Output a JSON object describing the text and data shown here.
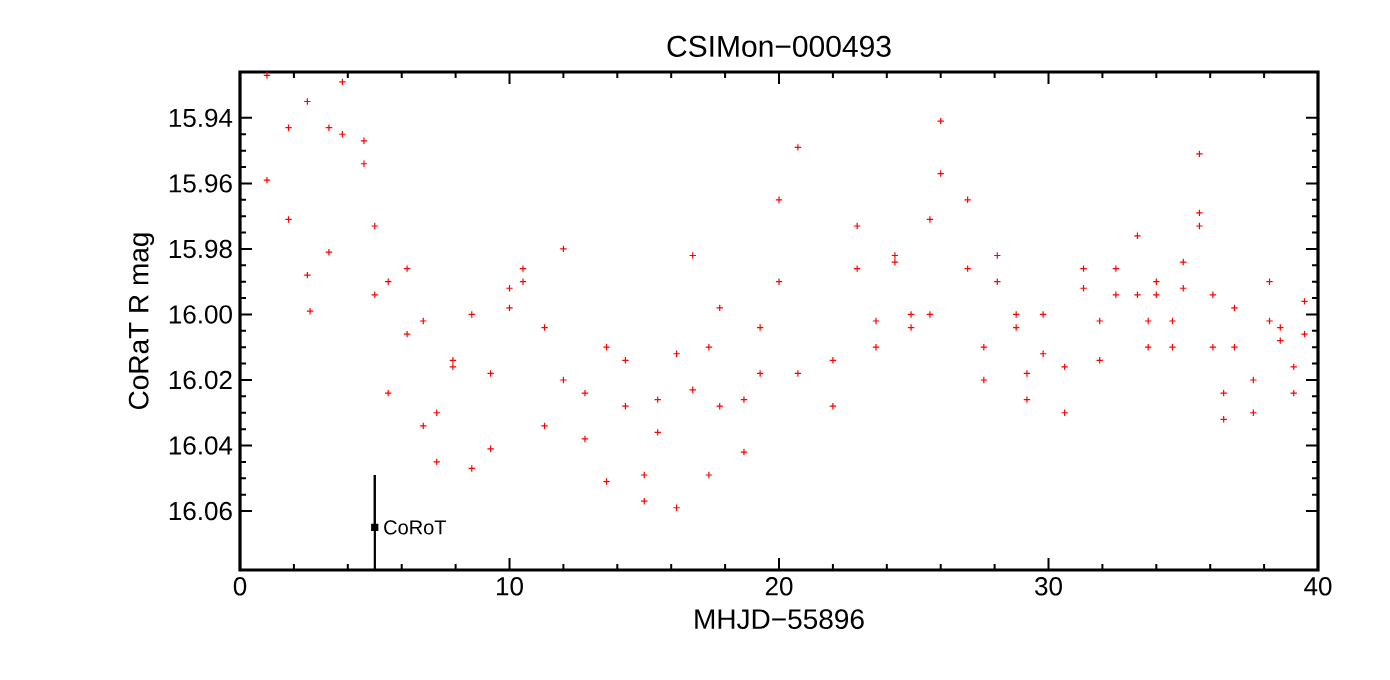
{
  "chart_data": {
    "type": "scatter",
    "title": "CSIMon−000493",
    "xlabel": "MHJD−55896",
    "ylabel": "CoRaT R mag",
    "xlim": [
      0,
      40
    ],
    "xticks": [
      0,
      10,
      20,
      30,
      40
    ],
    "ylim": [
      16.078,
      15.926
    ],
    "yticks": [
      {
        "value": 15.94,
        "label": "15.94"
      },
      {
        "value": 15.96,
        "label": "15.96"
      },
      {
        "value": 15.98,
        "label": "15.98"
      },
      {
        "value": 16.0,
        "label": "16.00"
      },
      {
        "value": 16.02,
        "label": "16.02"
      },
      {
        "value": 16.04,
        "label": "16.04"
      },
      {
        "value": 16.06,
        "label": "16.06"
      }
    ],
    "grid": false,
    "series": [
      {
        "color": "#ff0000",
        "marker": "cross",
        "x": [
          1.0,
          1.0,
          1.8,
          1.8,
          2.5,
          2.5,
          2.6,
          3.3,
          3.3,
          3.8,
          3.8,
          4.6,
          4.6,
          5.0,
          5.0,
          5.5,
          5.5,
          6.2,
          6.2,
          6.8,
          6.8,
          7.3,
          7.3,
          7.9,
          7.9,
          8.6,
          8.6,
          9.3,
          9.3,
          10.0,
          10.0,
          10.5,
          10.5,
          11.3,
          11.3,
          12.0,
          12.0,
          12.8,
          12.8,
          13.6,
          13.6,
          14.3,
          14.3,
          15.0,
          15.0,
          15.5,
          15.5,
          16.2,
          16.2,
          16.8,
          16.8,
          17.4,
          17.4,
          17.8,
          17.8,
          18.7,
          18.7,
          19.3,
          19.3,
          20.0,
          20.0,
          20.7,
          20.7,
          22.0,
          22.0,
          22.9,
          22.9,
          23.6,
          23.6,
          24.3,
          24.3,
          24.9,
          24.9,
          25.6,
          25.6,
          26.0,
          26.0,
          27.0,
          27.0,
          27.6,
          27.6,
          28.1,
          28.1,
          28.8,
          28.8,
          29.2,
          29.2,
          29.8,
          29.8,
          30.6,
          30.6,
          31.3,
          31.3,
          31.9,
          31.9,
          32.5,
          32.5,
          33.3,
          33.3,
          33.7,
          33.7,
          34.0,
          34.0,
          34.6,
          34.6,
          35.0,
          35.0,
          35.6,
          35.6,
          35.6,
          36.1,
          36.1,
          36.5,
          36.5,
          36.9,
          36.9,
          37.6,
          37.6,
          38.2,
          38.2,
          38.6,
          38.6,
          39.1,
          39.1,
          39.5,
          39.5
        ],
        "values": [
          15.927,
          15.959,
          15.943,
          15.971,
          15.935,
          15.988,
          15.999,
          15.943,
          15.981,
          15.929,
          15.945,
          15.947,
          15.954,
          15.973,
          15.994,
          15.99,
          16.024,
          15.986,
          16.006,
          16.002,
          16.034,
          16.03,
          16.045,
          16.014,
          16.016,
          16.0,
          16.047,
          16.018,
          16.041,
          15.992,
          15.998,
          15.986,
          15.99,
          16.004,
          16.034,
          15.98,
          16.02,
          16.024,
          16.038,
          16.01,
          16.051,
          16.014,
          16.028,
          16.049,
          16.057,
          16.026,
          16.036,
          16.012,
          16.059,
          15.982,
          16.023,
          16.01,
          16.049,
          15.998,
          16.028,
          16.026,
          16.042,
          16.004,
          16.018,
          15.965,
          15.99,
          15.949,
          16.018,
          16.014,
          16.028,
          15.973,
          15.986,
          16.002,
          16.01,
          15.982,
          15.984,
          16.0,
          16.004,
          15.971,
          16.0,
          15.941,
          15.957,
          15.965,
          15.986,
          16.01,
          16.02,
          15.982,
          15.99,
          16.0,
          16.004,
          16.018,
          16.026,
          16.0,
          16.012,
          16.016,
          16.03,
          15.986,
          15.992,
          16.002,
          16.014,
          15.986,
          15.994,
          15.976,
          15.994,
          16.002,
          16.01,
          15.99,
          15.994,
          16.002,
          16.01,
          15.984,
          15.992,
          15.969,
          15.973,
          15.951,
          15.994,
          16.01,
          16.024,
          16.032,
          15.998,
          16.01,
          16.02,
          16.03,
          15.99,
          16.002,
          16.004,
          16.008,
          16.016,
          16.024,
          15.996,
          16.006
        ]
      },
      {
        "name": "CoRoT",
        "color": "#000000",
        "marker": "square",
        "x": [
          5
        ],
        "values": [
          16.065
        ],
        "errors": [
          [
            16.049,
            16.078
          ]
        ]
      }
    ]
  }
}
